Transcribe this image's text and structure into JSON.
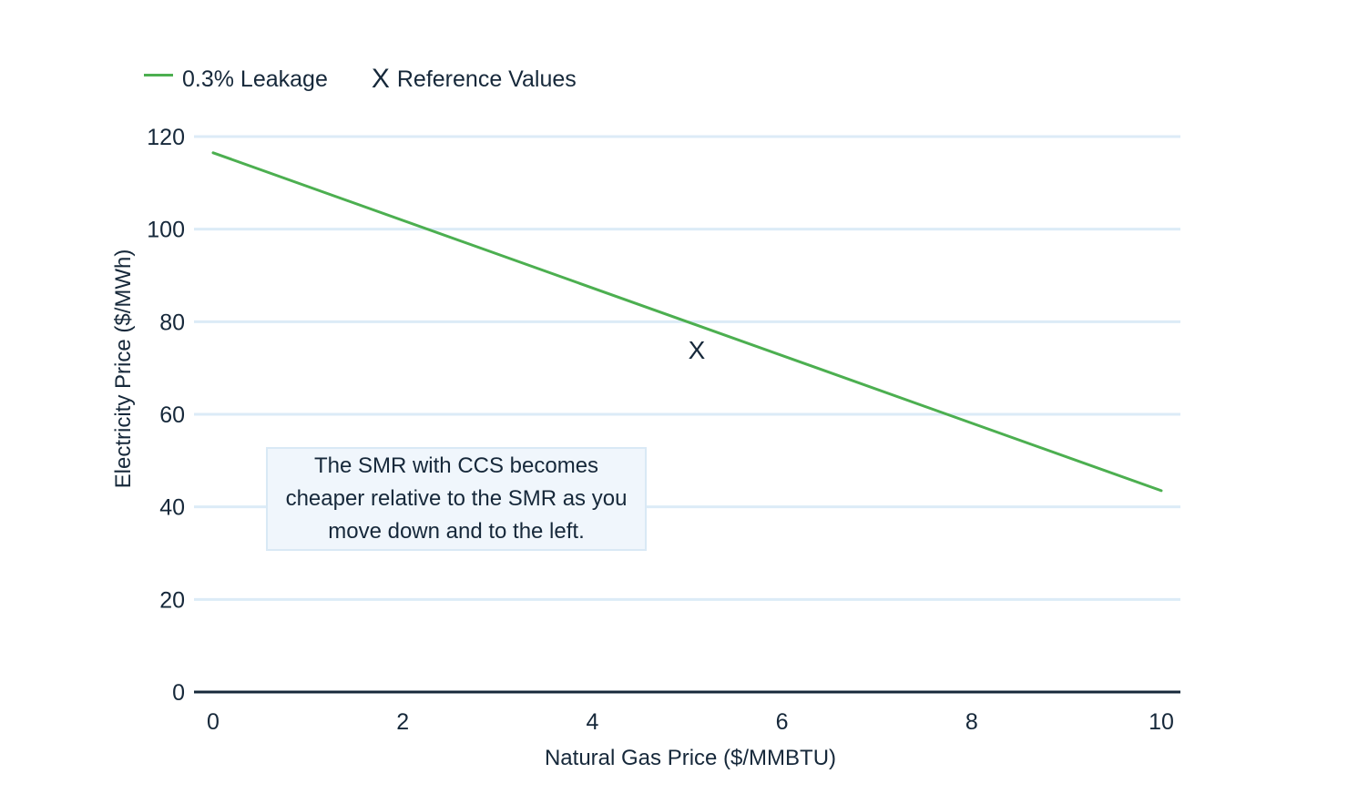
{
  "legend": {
    "series_label": "0.3% Leakage",
    "reference_symbol": "X",
    "reference_label": "Reference Values"
  },
  "annotation": {
    "text": "The SMR with CCS becomes cheaper relative to the SMR as you move down and to the left."
  },
  "colors": {
    "series": "#4caf50",
    "grid": "#dcebf7",
    "axis": "#16283a",
    "annotation_bg": "#f0f6fc",
    "annotation_border": "#d9e9f5"
  },
  "chart_data": {
    "type": "line",
    "xlabel": "Natural Gas Price ($/MMBTU)",
    "ylabel": "Electricity Price ($/MWh)",
    "xlim": [
      0,
      10
    ],
    "ylim": [
      0,
      120
    ],
    "x_ticks": [
      0,
      2,
      4,
      6,
      8,
      10
    ],
    "y_ticks": [
      0,
      20,
      40,
      60,
      80,
      100,
      120
    ],
    "grid": "horizontal",
    "legend_position": "top-left",
    "series": [
      {
        "name": "0.3% Leakage",
        "x": [
          0,
          10
        ],
        "y": [
          116.5,
          43.5
        ]
      }
    ],
    "reference_points": [
      {
        "label": "X",
        "x": 5.1,
        "y": 74
      }
    ]
  }
}
